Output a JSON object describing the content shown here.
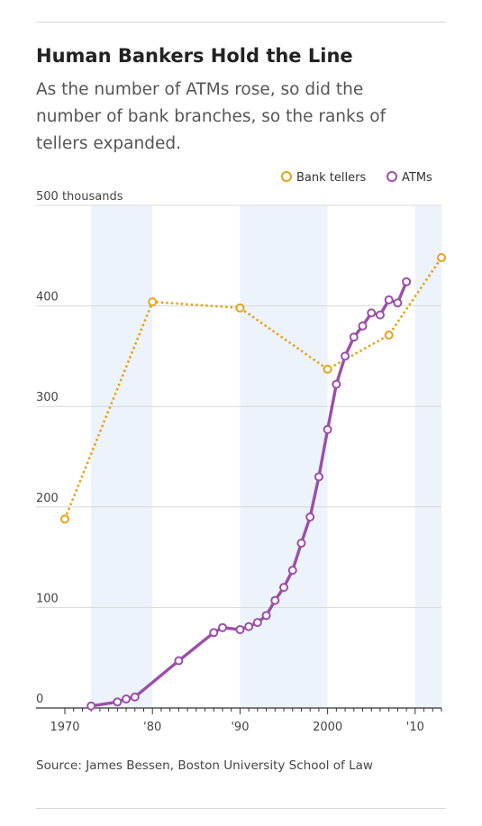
{
  "title": "Human Bankers Hold the Line",
  "subtitle": "As the number of ATMs rose, so did the number of bank branches, so the ranks of tellers expanded.",
  "source": "Source: James Bessen, Boston University School of Law",
  "chart_data": {
    "type": "line",
    "title": "Human Bankers Hold the Line",
    "y_unit_label": "500 thousands",
    "xlim": [
      1970,
      2013
    ],
    "ylim": [
      0,
      500
    ],
    "x_ticks": [
      1970,
      1980,
      1990,
      2000,
      2010
    ],
    "x_tick_labels": [
      "1970",
      "'80",
      "'90",
      "2000",
      "'10"
    ],
    "y_ticks": [
      0,
      100,
      200,
      300,
      400
    ],
    "y_tick_labels": [
      "0",
      "100",
      "200",
      "300",
      "400"
    ],
    "shaded_bands": [
      [
        1973,
        1980
      ],
      [
        1990,
        2000
      ],
      [
        2010,
        2013
      ]
    ],
    "grid": true,
    "legend_position": "top-right",
    "series": [
      {
        "name": "Bank tellers",
        "color": "#e8a317",
        "style": "dotted",
        "x": [
          1970,
          1980,
          1990,
          2000,
          2007,
          2013
        ],
        "y": [
          188,
          404,
          398,
          337,
          371,
          448
        ]
      },
      {
        "name": "ATMs",
        "color": "#9b4fa8",
        "style": "solid",
        "x": [
          1973,
          1976,
          1977,
          1978,
          1983,
          1987,
          1988,
          1990,
          1991,
          1992,
          1993,
          1994,
          1995,
          1996,
          1997,
          1998,
          1999,
          2000,
          2001,
          2002,
          2003,
          2004,
          2005,
          2006,
          2007,
          2008,
          2009
        ],
        "y": [
          2,
          6,
          9,
          11,
          47,
          75,
          80,
          78,
          81,
          85,
          92,
          107,
          120,
          137,
          164,
          190,
          230,
          277,
          322,
          350,
          369,
          380,
          393,
          391,
          406,
          403,
          424
        ]
      }
    ]
  }
}
